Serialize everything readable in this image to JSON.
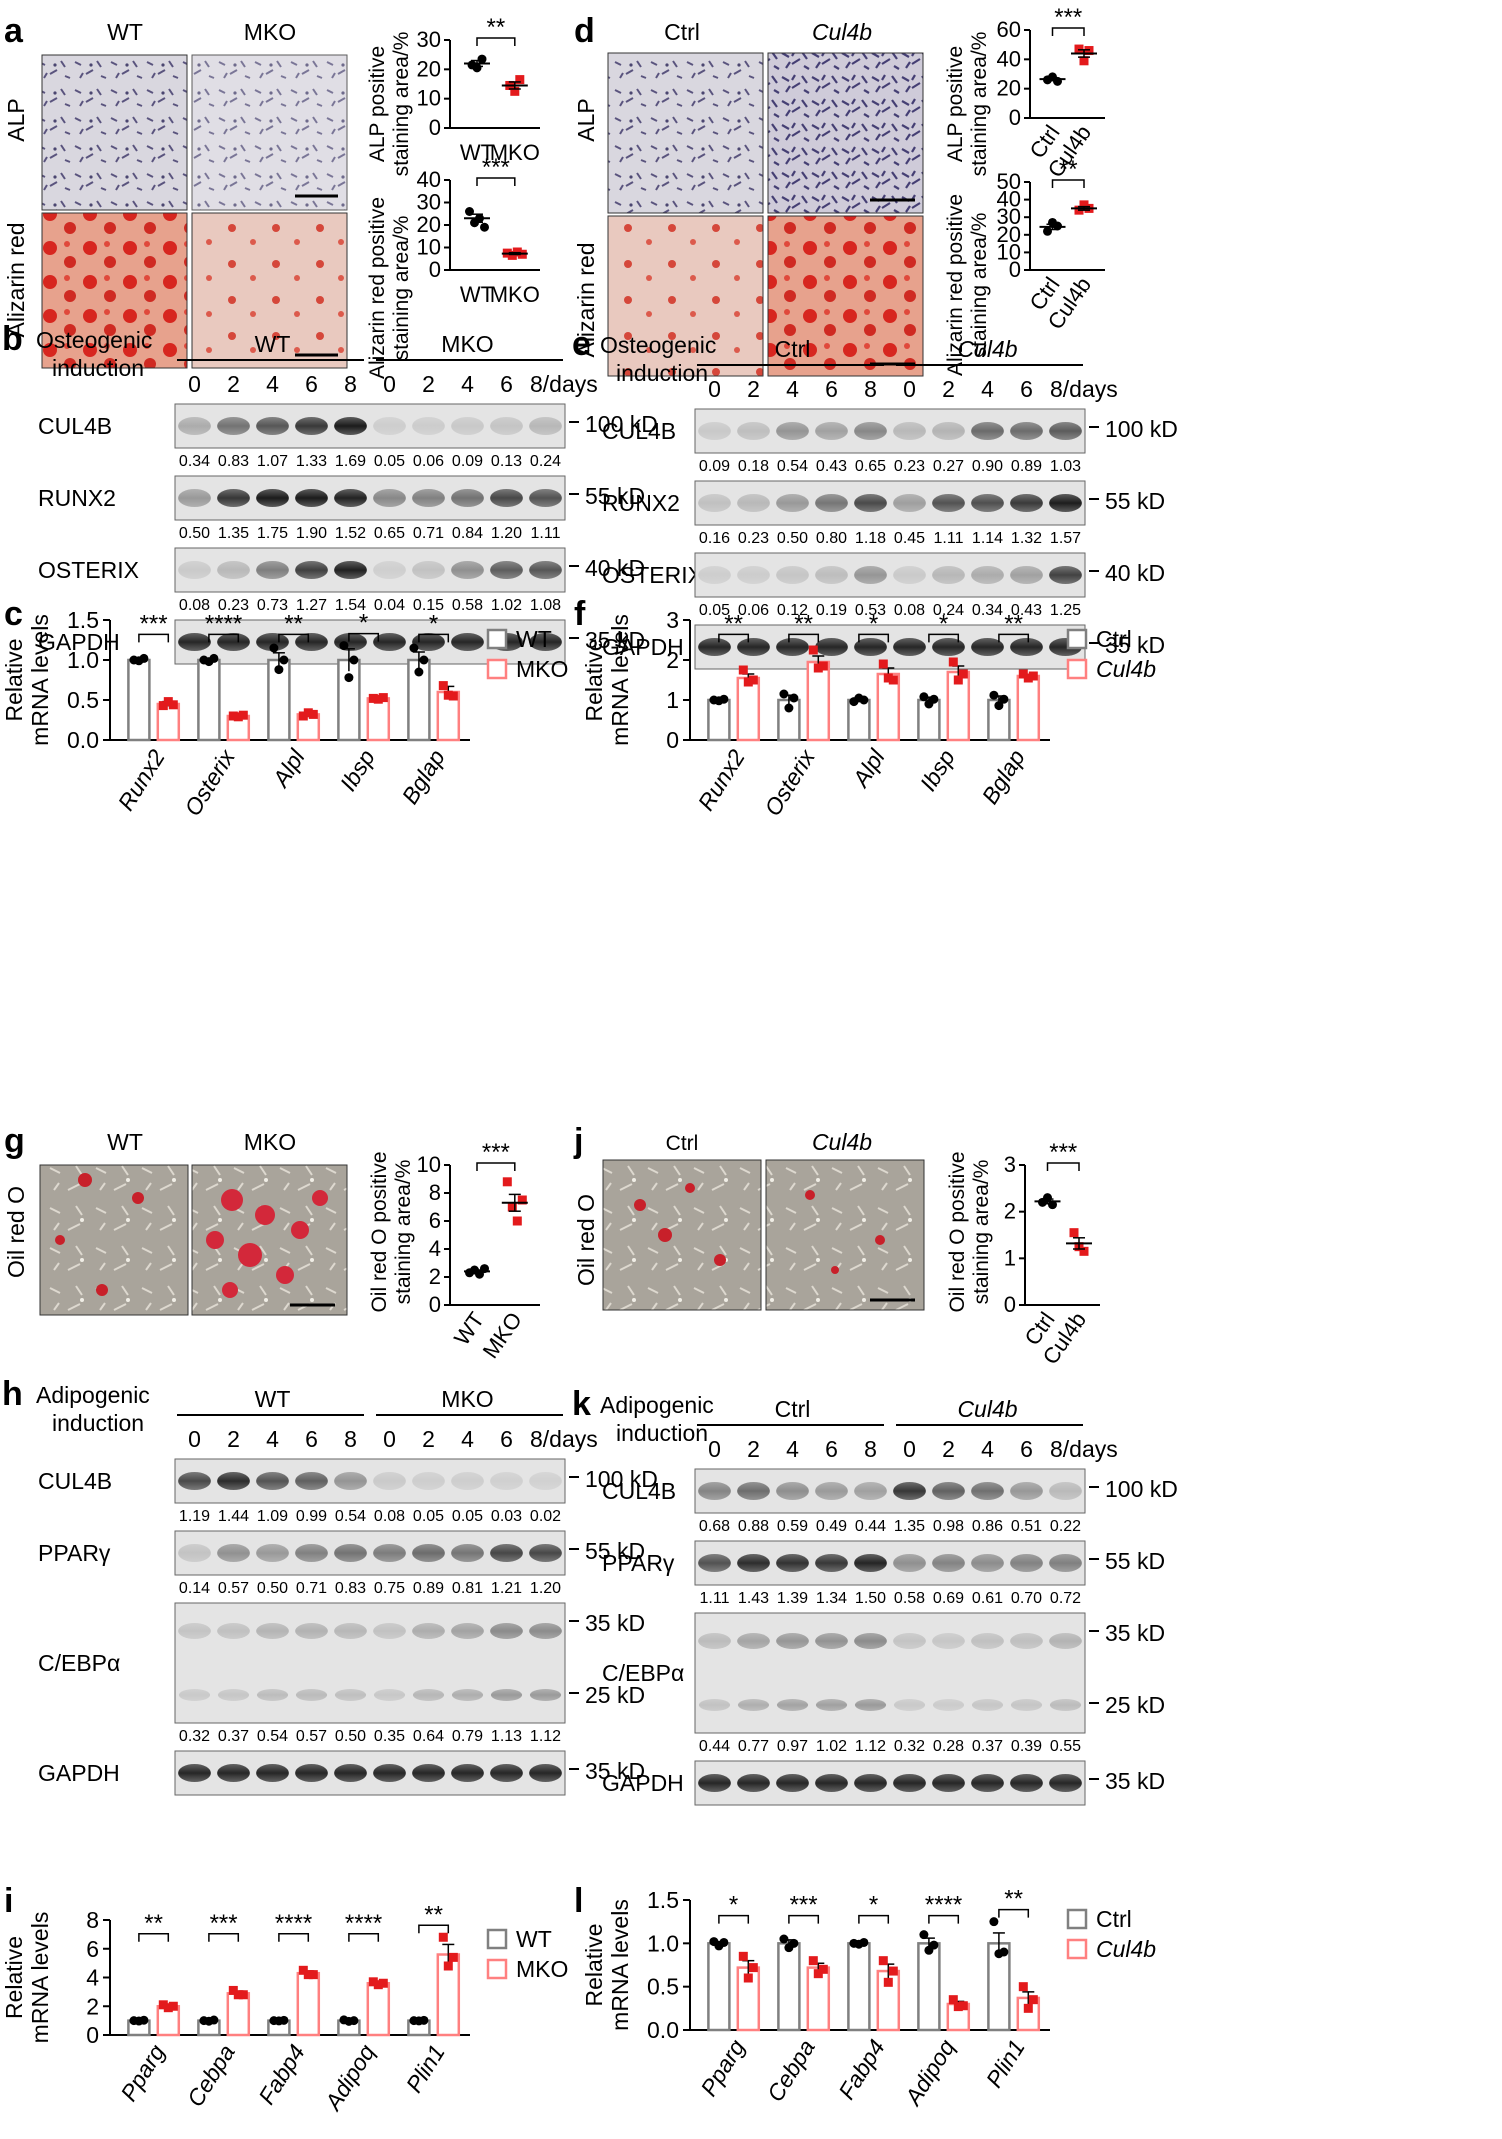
{
  "panels": {
    "a": {
      "letter": "a",
      "col_wt": "WT",
      "col_mko": "MKO",
      "row_alp": "ALP",
      "row_ar": "Alizarin red",
      "alp_ylabel1": "ALP positive",
      "alp_ylabel2": "staining area/%",
      "ar_ylabel1": "Alizarin red positive",
      "ar_ylabel2": "staining area/%",
      "alp_sig": "**",
      "ar_sig": "***",
      "x1": "WT",
      "x2": "MKO"
    },
    "d": {
      "letter": "d",
      "col_ctrl": "Ctrl",
      "col_cul": "Cul4b",
      "row_alp": "ALP",
      "row_ar": "Alizarin red",
      "alp_ylabel1": "ALP positive",
      "alp_ylabel2": "staining area/%",
      "ar_ylabel1": "Alizarin red positive",
      "ar_ylabel2": "staining area/%",
      "alp_sig": "***",
      "ar_sig": "**",
      "x1": "Ctrl",
      "x2": "Cul4b"
    },
    "b": {
      "letter": "b",
      "ind1": "Osteogenic",
      "ind2": "induction",
      "g1": "WT",
      "g2": "MKO",
      "days": [
        "0",
        "2",
        "4",
        "6",
        "8",
        "0",
        "2",
        "4",
        "6",
        "8/days"
      ],
      "bands": [
        {
          "label": "CUL4B",
          "marker": "100 kD",
          "values": [
            "0.34",
            "0.83",
            "1.07",
            "1.33",
            "1.69",
            "0.05",
            "0.06",
            "0.09",
            "0.13",
            "0.24"
          ]
        },
        {
          "label": "RUNX2",
          "marker": "55 kD",
          "values": [
            "0.50",
            "1.35",
            "1.75",
            "1.90",
            "1.52",
            "0.65",
            "0.71",
            "0.84",
            "1.20",
            "1.11"
          ]
        },
        {
          "label": "OSTERIX",
          "marker": "40 kD",
          "values": [
            "0.08",
            "0.23",
            "0.73",
            "1.27",
            "1.54",
            "0.04",
            "0.15",
            "0.58",
            "1.02",
            "1.08"
          ]
        },
        {
          "label": "GAPDH",
          "marker": "35 kD"
        }
      ]
    },
    "e": {
      "letter": "e",
      "ind1": "Osteogenic",
      "ind2": "induction",
      "g1": "Ctrl",
      "g2": "Cul4b",
      "days": [
        "0",
        "2",
        "4",
        "6",
        "8",
        "0",
        "2",
        "4",
        "6",
        "8/days"
      ],
      "bands": [
        {
          "label": "CUL4B",
          "marker": "100 kD",
          "values": [
            "0.09",
            "0.18",
            "0.54",
            "0.43",
            "0.65",
            "0.23",
            "0.27",
            "0.90",
            "0.89",
            "1.03"
          ]
        },
        {
          "label": "RUNX2",
          "marker": "55 kD",
          "values": [
            "0.16",
            "0.23",
            "0.50",
            "0.80",
            "1.18",
            "0.45",
            "1.11",
            "1.14",
            "1.32",
            "1.57"
          ]
        },
        {
          "label": "OSTERIX",
          "marker": "40 kD",
          "values": [
            "0.05",
            "0.06",
            "0.12",
            "0.19",
            "0.53",
            "0.08",
            "0.24",
            "0.34",
            "0.43",
            "1.25"
          ]
        },
        {
          "label": "GAPDH",
          "marker": "35 kD"
        }
      ]
    },
    "g": {
      "letter": "g",
      "col_wt": "WT",
      "col_mko": "MKO",
      "row": "Oil red O",
      "ylabel1": "Oil red O positive",
      "ylabel2": "staining area/%",
      "sig": "***",
      "x1": "WT",
      "x2": "MKO"
    },
    "j": {
      "letter": "j",
      "col_ctrl": "Ctrl",
      "col_cul": "Cul4b",
      "row": "Oil red O",
      "ylabel1": "Oil red O positive",
      "ylabel2": "staining area/%",
      "sig": "***",
      "x1": "Ctrl",
      "x2": "Cul4b"
    },
    "h": {
      "letter": "h",
      "ind1": "Adipogenic",
      "ind2": "induction",
      "g1": "WT",
      "g2": "MKO",
      "days": [
        "0",
        "2",
        "4",
        "6",
        "8",
        "0",
        "2",
        "4",
        "6",
        "8/days"
      ],
      "bands": [
        {
          "label": "CUL4B",
          "marker": "100 kD",
          "values": [
            "1.19",
            "1.44",
            "1.09",
            "0.99",
            "0.54",
            "0.08",
            "0.05",
            "0.05",
            "0.03",
            "0.02"
          ]
        },
        {
          "label": "PPARγ",
          "marker": "55 kD",
          "values": [
            "0.14",
            "0.57",
            "0.50",
            "0.71",
            "0.83",
            "0.75",
            "0.89",
            "0.81",
            "1.21",
            "1.20"
          ]
        },
        {
          "label": "C/EBPα",
          "marker": "35 kD",
          "marker2": "25 kD",
          "values": [
            "0.32",
            "0.37",
            "0.54",
            "0.57",
            "0.50",
            "0.35",
            "0.64",
            "0.79",
            "1.13",
            "1.12"
          ]
        },
        {
          "label": "GAPDH",
          "marker": "35 kD"
        }
      ]
    },
    "k": {
      "letter": "k",
      "ind1": "Adipogenic",
      "ind2": "induction",
      "g1": "Ctrl",
      "g2": "Cul4b",
      "days": [
        "0",
        "2",
        "4",
        "6",
        "8",
        "0",
        "2",
        "4",
        "6",
        "8/days"
      ],
      "bands": [
        {
          "label": "CUL4B",
          "marker": "100 kD",
          "values": [
            "0.68",
            "0.88",
            "0.59",
            "0.49",
            "0.44",
            "1.35",
            "0.98",
            "0.86",
            "0.51",
            "0.22"
          ]
        },
        {
          "label": "PPARγ",
          "marker": "55 kD",
          "values": [
            "1.11",
            "1.43",
            "1.39",
            "1.34",
            "1.50",
            "0.58",
            "0.69",
            "0.61",
            "0.70",
            "0.72"
          ]
        },
        {
          "label": "C/EBPα",
          "marker": "35 kD",
          "marker2": "25 kD",
          "values": [
            "0.44",
            "0.77",
            "0.97",
            "1.02",
            "1.12",
            "0.32",
            "0.28",
            "0.37",
            "0.39",
            "0.55"
          ]
        },
        {
          "label": "GAPDH",
          "marker": "35 kD"
        }
      ]
    },
    "c_letter": "c",
    "f_letter": "f",
    "i_letter": "i",
    "l_letter": "l"
  },
  "chart_data": [
    {
      "id": "a1",
      "type": "scatter",
      "ylabel": "ALP positive staining area/%",
      "categories": [
        "WT",
        "MKO"
      ],
      "ylim": [
        0,
        30
      ],
      "yticks": [
        0,
        10,
        20,
        30
      ],
      "series": [
        {
          "name": "WT",
          "color": "#000000",
          "points": [
            21.5,
            20.5,
            23.5
          ],
          "mean": 22,
          "sem": 1
        },
        {
          "name": "MKO",
          "color": "#e31a1c",
          "points": [
            14.5,
            12.5,
            16.5
          ],
          "mean": 14.5,
          "sem": 1.2
        }
      ],
      "sig": "**"
    },
    {
      "id": "a2",
      "type": "scatter",
      "ylabel": "Alizarin red positive staining area/%",
      "categories": [
        "WT",
        "MKO"
      ],
      "ylim": [
        0,
        40
      ],
      "yticks": [
        0,
        10,
        20,
        30,
        40
      ],
      "series": [
        {
          "name": "WT",
          "color": "#000000",
          "points": [
            26,
            21,
            23,
            19
          ],
          "mean": 23,
          "sem": 1.8
        },
        {
          "name": "MKO",
          "color": "#e31a1c",
          "points": [
            7.5,
            6.5,
            8,
            7
          ],
          "mean": 7.3,
          "sem": 0.4
        }
      ],
      "sig": "***"
    },
    {
      "id": "d1",
      "type": "scatter",
      "ylabel": "ALP positive staining area/%",
      "categories": [
        "Ctrl",
        "Cul4b"
      ],
      "ylim": [
        0,
        60
      ],
      "yticks": [
        0,
        20,
        40,
        60
      ],
      "series": [
        {
          "name": "Ctrl",
          "color": "#000000",
          "points": [
            26,
            28,
            25
          ],
          "mean": 26.5,
          "sem": 0.9
        },
        {
          "name": "Cul4b",
          "color": "#e31a1c",
          "points": [
            47,
            39,
            46
          ],
          "mean": 44,
          "sem": 2.5
        }
      ],
      "sig": "***"
    },
    {
      "id": "d2",
      "type": "scatter",
      "ylabel": "Alizarin red positive staining area/%",
      "categories": [
        "Ctrl",
        "Cul4b"
      ],
      "ylim": [
        0,
        50
      ],
      "yticks": [
        0,
        10,
        20,
        30,
        40,
        50
      ],
      "series": [
        {
          "name": "Ctrl",
          "color": "#000000",
          "points": [
            22,
            27,
            25
          ],
          "mean": 24.5,
          "sem": 1.5
        },
        {
          "name": "Cul4b",
          "color": "#e31a1c",
          "points": [
            34,
            37,
            35
          ],
          "mean": 35,
          "sem": 1
        }
      ],
      "sig": "**"
    },
    {
      "id": "g1",
      "type": "scatter",
      "ylabel": "Oil red O positive staining area/%",
      "categories": [
        "WT",
        "MKO"
      ],
      "ylim": [
        0,
        10
      ],
      "yticks": [
        0,
        2,
        4,
        6,
        8,
        10
      ],
      "series": [
        {
          "name": "WT",
          "color": "#000000",
          "points": [
            2.3,
            2.5,
            2.2,
            2.6
          ],
          "mean": 2.4,
          "sem": 0.1
        },
        {
          "name": "MKO",
          "color": "#e31a1c",
          "points": [
            8.8,
            7,
            6,
            7.5
          ],
          "mean": 7.3,
          "sem": 0.6
        }
      ],
      "sig": "***"
    },
    {
      "id": "j1",
      "type": "scatter",
      "ylabel": "Oil red O positive staining area/%",
      "categories": [
        "Ctrl",
        "Cul4b"
      ],
      "ylim": [
        0,
        3
      ],
      "yticks": [
        0,
        1,
        2,
        3
      ],
      "series": [
        {
          "name": "Ctrl",
          "color": "#000000",
          "points": [
            2.2,
            2.3,
            2.15
          ],
          "mean": 2.22,
          "sem": 0.05
        },
        {
          "name": "Cul4b",
          "color": "#e31a1c",
          "points": [
            1.55,
            1.25,
            1.15
          ],
          "mean": 1.32,
          "sem": 0.12
        }
      ],
      "sig": "***"
    },
    {
      "id": "c",
      "type": "bar",
      "ylabel1": "Relative",
      "ylabel2": "mRNA levels",
      "categories": [
        "Runx2",
        "Osterix",
        "Alpl",
        "Ibsp",
        "Bglap"
      ],
      "ylim": [
        0,
        1.5
      ],
      "yticks": [
        "0.0",
        "0.5",
        "1.0",
        "1.5"
      ],
      "series": [
        {
          "name": "WT",
          "values": [
            1.0,
            1.0,
            1.0,
            1.0,
            1.0
          ],
          "sem": [
            0.02,
            0.02,
            0.09,
            0.14,
            0.1
          ],
          "points": [
            [
              1.0,
              0.99,
              1.02
            ],
            [
              1.0,
              0.98,
              1.02
            ],
            [
              1.15,
              0.88,
              1.0
            ],
            [
              1.18,
              0.78,
              1.0
            ],
            [
              1.15,
              0.85,
              1.0
            ]
          ]
        },
        {
          "name": "MKO",
          "values": [
            0.45,
            0.3,
            0.32,
            0.52,
            0.6
          ],
          "sem": [
            0.03,
            0.02,
            0.02,
            0.01,
            0.07
          ],
          "points": [
            [
              0.43,
              0.48,
              0.44
            ],
            [
              0.3,
              0.29,
              0.31
            ],
            [
              0.3,
              0.34,
              0.32
            ],
            [
              0.52,
              0.51,
              0.53
            ],
            [
              0.68,
              0.56,
              0.55
            ]
          ]
        }
      ],
      "sig": [
        "***",
        "****",
        "**",
        "*",
        "*"
      ],
      "legend": [
        "WT",
        "MKO"
      ]
    },
    {
      "id": "f",
      "type": "bar",
      "ylabel1": "Relative",
      "ylabel2": "mRNA levels",
      "categories": [
        "Runx2",
        "Osterix",
        "Alpl",
        "Ibsp",
        "Bglap"
      ],
      "ylim": [
        0,
        3
      ],
      "yticks": [
        "0",
        "1",
        "2",
        "3"
      ],
      "series": [
        {
          "name": "Ctrl",
          "values": [
            1.0,
            1.0,
            1.0,
            1.0,
            1.0
          ],
          "sem": [
            0.02,
            0.12,
            0.04,
            0.07,
            0.1
          ],
          "points": [
            [
              1.0,
              0.98,
              1.02
            ],
            [
              1.15,
              0.8,
              1.05
            ],
            [
              0.96,
              1.05,
              1.0
            ],
            [
              1.08,
              0.9,
              1.02
            ],
            [
              1.12,
              0.86,
              1.02
            ]
          ]
        },
        {
          "name": "Cul4b",
          "values": [
            1.55,
            1.95,
            1.65,
            1.7,
            1.6
          ],
          "sem": [
            0.1,
            0.15,
            0.15,
            0.15,
            0.04
          ],
          "points": [
            [
              1.75,
              1.45,
              1.5
            ],
            [
              2.25,
              1.8,
              1.85
            ],
            [
              1.9,
              1.55,
              1.5
            ],
            [
              1.95,
              1.5,
              1.65
            ],
            [
              1.65,
              1.55,
              1.6
            ]
          ]
        }
      ],
      "sig": [
        "**",
        "**",
        "*",
        "*",
        "**"
      ],
      "legend": [
        "Ctrl",
        "Cul4b"
      ]
    },
    {
      "id": "i",
      "type": "bar",
      "ylabel1": "Relative",
      "ylabel2": "mRNA levels",
      "categories": [
        "Pparg",
        "Cebpa",
        "Fabp4",
        "Adipoq",
        "Plin1"
      ],
      "ylim": [
        0,
        8
      ],
      "yticks": [
        "0",
        "2",
        "4",
        "6",
        "8"
      ],
      "series": [
        {
          "name": "WT",
          "values": [
            1.0,
            1.0,
            1.0,
            1.0,
            1.0
          ],
          "sem": [
            0.03,
            0.03,
            0.03,
            0.04,
            0.03
          ],
          "points": [
            [
              1.0,
              0.97,
              1.03
            ],
            [
              1.0,
              0.96,
              1.04
            ],
            [
              1.0,
              0.98,
              1.02
            ],
            [
              1.05,
              0.95,
              1.0
            ],
            [
              1.0,
              0.98,
              1.02
            ]
          ]
        },
        {
          "name": "MKO",
          "values": [
            2.0,
            2.9,
            4.3,
            3.6,
            5.6
          ],
          "sem": [
            0.1,
            0.15,
            0.15,
            0.1,
            0.7
          ],
          "points": [
            [
              2.1,
              1.9,
              2.0
            ],
            [
              3.1,
              2.8,
              2.8
            ],
            [
              4.5,
              4.2,
              4.2
            ],
            [
              3.7,
              3.5,
              3.6
            ],
            [
              6.8,
              4.8,
              5.4
            ]
          ]
        }
      ],
      "sig": [
        "**",
        "***",
        "****",
        "****",
        "**"
      ],
      "legend": [
        "WT",
        "MKO"
      ]
    },
    {
      "id": "l",
      "type": "bar",
      "ylabel1": "Relative",
      "ylabel2": "mRNA levels",
      "categories": [
        "Pparg",
        "Cebpa",
        "Fabp4",
        "Adipoq",
        "Plin1"
      ],
      "ylim": [
        0,
        1.5
      ],
      "yticks": [
        "0.0",
        "0.5",
        "1.0",
        "1.5"
      ],
      "series": [
        {
          "name": "Ctrl",
          "values": [
            1.0,
            1.0,
            1.0,
            1.0,
            1.0
          ],
          "sem": [
            0.02,
            0.04,
            0.01,
            0.06,
            0.12
          ],
          "points": [
            [
              1.02,
              0.97,
              1.01
            ],
            [
              1.05,
              0.95,
              1.0
            ],
            [
              1.0,
              0.99,
              1.01
            ],
            [
              1.1,
              0.92,
              0.98
            ],
            [
              1.25,
              0.88,
              0.9
            ]
          ]
        },
        {
          "name": "Cul4b",
          "values": [
            0.72,
            0.72,
            0.68,
            0.3,
            0.37
          ],
          "sem": [
            0.08,
            0.05,
            0.08,
            0.03,
            0.07
          ],
          "points": [
            [
              0.85,
              0.6,
              0.72
            ],
            [
              0.8,
              0.65,
              0.7
            ],
            [
              0.8,
              0.55,
              0.68
            ],
            [
              0.35,
              0.27,
              0.28
            ],
            [
              0.5,
              0.25,
              0.35
            ]
          ]
        }
      ],
      "sig": [
        "*",
        "***",
        "*",
        "****",
        "**"
      ],
      "legend": [
        "Ctrl",
        "Cul4b"
      ]
    }
  ]
}
